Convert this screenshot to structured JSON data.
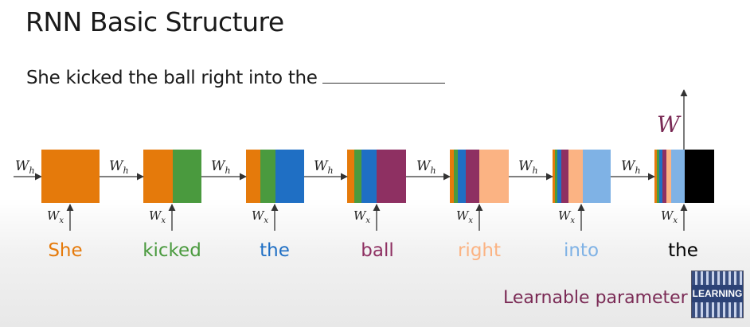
{
  "title": "RNN Basic Structure",
  "sentence": "She kicked the ball right into the",
  "colors": {
    "she": "#e57a0b",
    "kicked": "#4a9a3e",
    "the": "#1f6fc4",
    "ball": "#8e3062",
    "right": "#fbb383",
    "into": "#7fb2e5",
    "the_final": "#000000",
    "learnable": "#7a2a55"
  },
  "words": [
    {
      "text": "She",
      "color": "#e57a0b"
    },
    {
      "text": "kicked",
      "color": "#4a9a3e"
    },
    {
      "text": "the",
      "color": "#1f6fc4"
    },
    {
      "text": "ball",
      "color": "#8e3062"
    },
    {
      "text": "right",
      "color": "#fbb383"
    },
    {
      "text": "into",
      "color": "#7fb2e5"
    },
    {
      "text": "the",
      "color": "#000000"
    }
  ],
  "labels": {
    "wh": "W",
    "wh_sub": "h",
    "wx": "W",
    "wx_sub": "x",
    "output_w": "W"
  },
  "learnable_text": "Learnable parameter",
  "logo_text": "LEARNING"
}
